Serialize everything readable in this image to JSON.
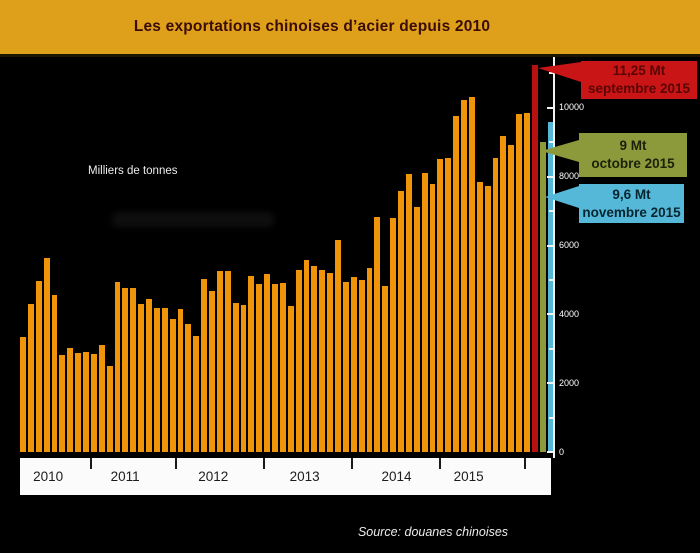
{
  "header": {
    "title": "Les exportations chinoises d’acier depuis 2010"
  },
  "chart_data": {
    "type": "bar",
    "title": "Les exportations chinoises d’acier depuis 2010",
    "ylabel": "Milliers de tonnes",
    "xlabel": "",
    "x_year_labels": [
      "2010",
      "2011",
      "2012",
      "2013",
      "2014",
      "2015"
    ],
    "y_ticks": [
      0,
      2000,
      4000,
      6000,
      8000,
      10000
    ],
    "ylim": [
      0,
      11480
    ],
    "grid": false,
    "legend_position": "none",
    "bar_default_color": "#F0940A",
    "values": [
      3330,
      4290,
      4960,
      5650,
      4550,
      2810,
      3010,
      2870,
      2900,
      2840,
      3100,
      2490,
      4930,
      4780,
      4780,
      4290,
      4440,
      4200,
      4200,
      3860,
      4150,
      3710,
      3360,
      5040,
      4670,
      5250,
      5250,
      4320,
      4260,
      5130,
      4870,
      5160,
      4870,
      4900,
      4230,
      5300,
      5570,
      5420,
      5300,
      5190,
      6170,
      4930,
      5100,
      5010,
      5360,
      6840,
      4830,
      6800,
      7580,
      8090,
      7110,
      8110,
      7780,
      8520,
      8550,
      9760,
      10220,
      10320,
      7840,
      7720,
      8550,
      9180,
      8910,
      9820,
      9840,
      11250,
      9000,
      9600
    ],
    "highlighted_bars": [
      {
        "index": 65,
        "value": 11250,
        "label": "septembre 2015",
        "color": "#B81111"
      },
      {
        "index": 66,
        "value": 9000,
        "label": "octobre 2015",
        "color": "#8C9A3B"
      },
      {
        "index": 67,
        "value": 9600,
        "label": "novembre 2015",
        "color": "#55B8D9"
      }
    ]
  },
  "callouts": [
    {
      "value": "11,25 Mt",
      "period": "septembre 2015",
      "bg": "#C91515",
      "fg": "#5A0505"
    },
    {
      "value": "9 Mt",
      "period": "octobre 2015",
      "bg": "#8C9A3B",
      "fg": "#1C2108"
    },
    {
      "value": "9,6 Mt",
      "period": "novembre  2015",
      "bg": "#55B8D9",
      "fg": "#07262F"
    }
  ],
  "footer": {
    "source": "Source: douanes chinoises"
  }
}
